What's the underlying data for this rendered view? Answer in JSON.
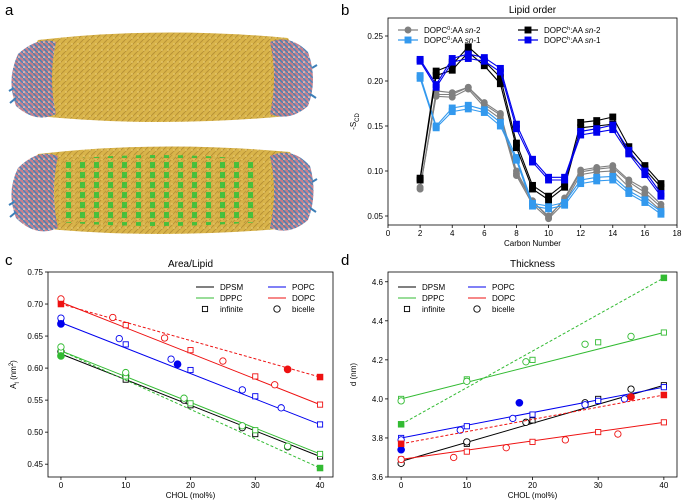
{
  "panels": {
    "a": {
      "letter": "a"
    },
    "b": {
      "letter": "b"
    },
    "c": {
      "letter": "c"
    },
    "d": {
      "letter": "d"
    }
  },
  "colors": {
    "tail_yellow": "#d9b44a",
    "head_blue": "#3d7fb8",
    "head_pink": "#c27b8a",
    "cholesterol_green": "#2fc23a",
    "black": "#000000",
    "gray": "#808080",
    "blue": "#0000ee",
    "lightblue": "#3399ee",
    "green": "#33bb33",
    "red": "#ee1111"
  },
  "chart_data": [
    {
      "panel": "b",
      "type": "line",
      "title": "Lipid order",
      "xlabel": "Carbon Number",
      "ylabel": "-S",
      "ylabel_sub": "CD",
      "xlim": [
        0,
        18
      ],
      "ylim": [
        0.04,
        0.27
      ],
      "xticks": [
        0,
        2,
        4,
        6,
        8,
        10,
        12,
        14,
        16,
        18
      ],
      "yticks": [
        0.05,
        0.1,
        0.15,
        0.2,
        0.25
      ],
      "ytick_labels": [
        "0.05",
        "0.10",
        "0.15",
        "0.20",
        "0.25"
      ],
      "legend": [
        {
          "text": "DOPC",
          "sup": "0",
          "rest": ":AA ",
          "ital": "sn",
          "tail": "-2",
          "color": "#808080",
          "marker": "circle"
        },
        {
          "text": "DOPC",
          "sup": "h",
          "rest": ":AA ",
          "ital": "sn",
          "tail": "-2",
          "color": "#000000",
          "marker": "square"
        },
        {
          "text": "DOPC",
          "sup": "0",
          "rest": ":AA ",
          "ital": "sn",
          "tail": "-1",
          "color": "#3399ee",
          "marker": "square"
        },
        {
          "text": "DOPC",
          "sup": "h",
          "rest": ":AA ",
          "ital": "sn",
          "tail": "-1",
          "color": "#0000ee",
          "marker": "square"
        }
      ],
      "legend_position": "top",
      "series": [
        {
          "group": "gray-sn2",
          "color": "#808080",
          "marker": "circle",
          "x": [
            2,
            3,
            4,
            5,
            6,
            7,
            8,
            9,
            10,
            11,
            12,
            13,
            14,
            15,
            16,
            17
          ],
          "lines": [
            [
              0.082,
              0.183,
              0.182,
              0.191,
              0.171,
              0.158,
              0.095,
              0.063,
              0.047,
              0.065,
              0.096,
              0.099,
              0.1,
              0.082,
              0.072,
              0.056
            ],
            [
              0.08,
              0.185,
              0.185,
              0.193,
              0.174,
              0.162,
              0.097,
              0.066,
              0.05,
              0.068,
              0.099,
              0.102,
              0.104,
              0.088,
              0.076,
              0.06
            ],
            [
              0.08,
              0.189,
              0.187,
              0.193,
              0.176,
              0.164,
              0.1,
              0.067,
              0.048,
              0.07,
              0.101,
              0.104,
              0.106,
              0.09,
              0.08,
              0.063
            ]
          ]
        },
        {
          "group": "lightblue-sn1",
          "color": "#3399ee",
          "marker": "square",
          "x": [
            2,
            3,
            4,
            5,
            6,
            7,
            8,
            9,
            10,
            11,
            12,
            13,
            14,
            15,
            16,
            17
          ],
          "lines": [
            [
              0.203,
              0.148,
              0.166,
              0.169,
              0.165,
              0.15,
              0.112,
              0.061,
              0.058,
              0.062,
              0.086,
              0.089,
              0.09,
              0.075,
              0.065,
              0.052
            ],
            [
              0.206,
              0.15,
              0.17,
              0.173,
              0.168,
              0.154,
              0.115,
              0.064,
              0.061,
              0.065,
              0.09,
              0.093,
              0.094,
              0.078,
              0.068,
              0.055
            ]
          ]
        },
        {
          "group": "black-sn2",
          "color": "#000000",
          "marker": "square",
          "x": [
            2,
            3,
            4,
            5,
            6,
            7,
            8,
            9,
            10,
            11,
            12,
            13,
            14,
            15,
            16,
            17
          ],
          "lines": [
            [
              0.09,
              0.206,
              0.212,
              0.232,
              0.217,
              0.197,
              0.126,
              0.08,
              0.068,
              0.082,
              0.148,
              0.15,
              0.152,
              0.12,
              0.102,
              0.082
            ],
            [
              0.092,
              0.211,
              0.218,
              0.238,
              0.222,
              0.204,
              0.131,
              0.084,
              0.072,
              0.086,
              0.154,
              0.156,
              0.16,
              0.127,
              0.106,
              0.086
            ]
          ]
        },
        {
          "group": "blue-sn1",
          "color": "#0000ee",
          "marker": "square",
          "x": [
            2,
            3,
            4,
            5,
            6,
            7,
            8,
            9,
            10,
            11,
            12,
            13,
            14,
            15,
            16,
            17
          ],
          "lines": [
            [
              0.222,
              0.193,
              0.221,
              0.225,
              0.222,
              0.21,
              0.147,
              0.11,
              0.09,
              0.09,
              0.14,
              0.143,
              0.146,
              0.119,
              0.096,
              0.072
            ],
            [
              0.224,
              0.196,
              0.225,
              0.23,
              0.226,
              0.214,
              0.152,
              0.113,
              0.093,
              0.093,
              0.144,
              0.147,
              0.151,
              0.123,
              0.1,
              0.075
            ]
          ]
        }
      ]
    },
    {
      "panel": "c",
      "type": "line",
      "title": "Area/Lipid",
      "xlabel": "CHOL (mol%)",
      "ylabel": "A",
      "ylabel_sub": "l",
      "ylabel_unit": " (nm",
      "ylabel_sup": "2",
      "ylabel_end": ")",
      "xlim": [
        -2,
        42
      ],
      "ylim": [
        0.43,
        0.75
      ],
      "xticks": [
        0,
        10,
        20,
        30,
        40
      ],
      "yticks": [
        0.45,
        0.5,
        0.55,
        0.6,
        0.65,
        0.7,
        0.75
      ],
      "ytick_labels": [
        "0.45",
        "0.50",
        "0.55",
        "0.60",
        "0.65",
        "0.70",
        "0.75"
      ],
      "legend": [
        {
          "text": "DPSM",
          "color": "#000000",
          "kind": "line"
        },
        {
          "text": "POPC",
          "color": "#0000ee",
          "kind": "line"
        },
        {
          "text": "DPPC",
          "color": "#33bb33",
          "kind": "line"
        },
        {
          "text": "DOPC",
          "color": "#ee1111",
          "kind": "line"
        },
        {
          "text": "infinite",
          "color": "#000000",
          "kind": "square"
        },
        {
          "text": "bicelle",
          "color": "#000000",
          "kind": "circle"
        }
      ],
      "legend_position": "top-right",
      "series": [
        {
          "name": "DPSM",
          "color": "#000000",
          "fit": [
            [
              0,
              0.622
            ],
            [
              40,
              0.462
            ]
          ],
          "infinite": [
            [
              0,
              0.622
            ],
            [
              10,
              0.582
            ],
            [
              20,
              0.542
            ],
            [
              30,
              0.497
            ],
            [
              40,
              0.462
            ]
          ],
          "bicelle": [
            [
              0,
              0.626
            ],
            [
              10,
              0.588
            ],
            [
              19,
              0.55
            ],
            [
              28,
              0.507
            ],
            [
              35,
              0.477
            ]
          ]
        },
        {
          "name": "DPPC",
          "color": "#33bb33",
          "fit": [
            [
              0,
              0.627
            ],
            [
              40,
              0.466
            ]
          ],
          "infinite": [
            [
              0,
              0.627
            ],
            [
              10,
              0.587
            ],
            [
              20,
              0.545
            ],
            [
              30,
              0.503
            ],
            [
              40,
              0.466
            ]
          ],
          "bicelle": [
            [
              0,
              0.633
            ],
            [
              10,
              0.593
            ],
            [
              19,
              0.553
            ],
            [
              28,
              0.51
            ],
            [
              35,
              0.478
            ]
          ],
          "dashed": [
            [
              0,
              0.627
            ],
            [
              40,
              0.444
            ]
          ],
          "filled_square": [
            [
              40,
              0.444
            ]
          ],
          "filled_circle": [
            [
              0,
              0.619
            ]
          ]
        },
        {
          "name": "POPC",
          "color": "#0000ee",
          "fit": [
            [
              0,
              0.671
            ],
            [
              40,
              0.512
            ]
          ],
          "infinite": [
            [
              0,
              0.671
            ],
            [
              10,
              0.637
            ],
            [
              20,
              0.597
            ],
            [
              30,
              0.556
            ],
            [
              40,
              0.512
            ]
          ],
          "bicelle": [
            [
              0,
              0.678
            ],
            [
              9,
              0.646
            ],
            [
              17,
              0.614
            ],
            [
              28,
              0.566
            ],
            [
              34,
              0.538
            ]
          ],
          "filled_circle": [
            [
              18,
              0.606
            ],
            [
              0,
              0.669
            ]
          ]
        },
        {
          "name": "DOPC",
          "color": "#ee1111",
          "fit": [
            [
              0,
              0.703
            ],
            [
              40,
              0.543
            ]
          ],
          "infinite": [
            [
              0,
              0.703
            ],
            [
              10,
              0.667
            ],
            [
              20,
              0.628
            ],
            [
              30,
              0.587
            ],
            [
              40,
              0.543
            ]
          ],
          "bicelle": [
            [
              0,
              0.708
            ],
            [
              8,
              0.679
            ],
            [
              16,
              0.647
            ],
            [
              25,
              0.611
            ],
            [
              33,
              0.574
            ]
          ],
          "dashed": [
            [
              0,
              0.7
            ],
            [
              40,
              0.586
            ]
          ],
          "filled_square": [
            [
              0,
              0.7
            ],
            [
              40,
              0.586
            ]
          ],
          "filled_circle": [
            [
              35,
              0.598
            ]
          ]
        }
      ]
    },
    {
      "panel": "d",
      "type": "line",
      "title": "Thickness",
      "xlabel": "CHOL (mol%)",
      "ylabel": "d (nm)",
      "xlim": [
        -2,
        42
      ],
      "ylim": [
        3.6,
        4.65
      ],
      "xticks": [
        0,
        10,
        20,
        30,
        40
      ],
      "yticks": [
        3.6,
        3.8,
        4.0,
        4.2,
        4.4,
        4.6
      ],
      "ytick_labels": [
        "3.6",
        "3.8",
        "4.0",
        "4.2",
        "4.4",
        "4.6"
      ],
      "legend": [
        {
          "text": "DPSM",
          "color": "#000000",
          "kind": "line"
        },
        {
          "text": "POPC",
          "color": "#0000ee",
          "kind": "line"
        },
        {
          "text": "DPPC",
          "color": "#33bb33",
          "kind": "line"
        },
        {
          "text": "DOPC",
          "color": "#ee1111",
          "kind": "line"
        },
        {
          "text": "infinite",
          "color": "#000000",
          "kind": "square"
        },
        {
          "text": "bicelle",
          "color": "#000000",
          "kind": "circle"
        }
      ],
      "legend_position": "top-left",
      "series": [
        {
          "name": "DPSM",
          "color": "#000000",
          "fit": [
            [
              0,
              3.68
            ],
            [
              40,
              4.07
            ]
          ],
          "infinite": [
            [
              0,
              3.68
            ],
            [
              10,
              3.77
            ],
            [
              20,
              3.89
            ],
            [
              30,
              4.0
            ],
            [
              40,
              4.07
            ]
          ],
          "bicelle": [
            [
              0,
              3.67
            ],
            [
              10,
              3.78
            ],
            [
              19,
              3.88
            ],
            [
              28,
              3.98
            ],
            [
              35,
              4.05
            ]
          ]
        },
        {
          "name": "POPC",
          "color": "#0000ee",
          "fit": [
            [
              0,
              3.8
            ],
            [
              40,
              4.06
            ]
          ],
          "infinite": [
            [
              0,
              3.8
            ],
            [
              10,
              3.86
            ],
            [
              20,
              3.92
            ],
            [
              30,
              3.99
            ],
            [
              40,
              4.06
            ]
          ],
          "bicelle": [
            [
              0,
              3.79
            ],
            [
              9,
              3.84
            ],
            [
              17,
              3.9
            ],
            [
              28,
              3.97
            ],
            [
              34,
              4.0
            ]
          ],
          "filled_circle": [
            [
              18,
              3.98
            ],
            [
              0,
              3.74
            ]
          ]
        },
        {
          "name": "DPPC",
          "color": "#33bb33",
          "fit": [
            [
              0,
              4.0
            ],
            [
              40,
              4.34
            ]
          ],
          "infinite": [
            [
              0,
              4.0
            ],
            [
              10,
              4.1
            ],
            [
              20,
              4.2
            ],
            [
              30,
              4.29
            ],
            [
              40,
              4.34
            ]
          ],
          "bicelle": [
            [
              0,
              3.99
            ],
            [
              10,
              4.09
            ],
            [
              19,
              4.19
            ],
            [
              28,
              4.28
            ],
            [
              35,
              4.32
            ]
          ],
          "dashed": [
            [
              0,
              3.87
            ],
            [
              40,
              4.62
            ]
          ],
          "filled_square": [
            [
              0,
              3.87
            ],
            [
              40,
              4.62
            ]
          ]
        },
        {
          "name": "DOPC",
          "color": "#ee1111",
          "fit": [
            [
              0,
              3.69
            ],
            [
              40,
              3.88
            ]
          ],
          "infinite": [
            [
              0,
              3.69
            ],
            [
              10,
              3.73
            ],
            [
              20,
              3.78
            ],
            [
              30,
              3.83
            ],
            [
              40,
              3.88
            ]
          ],
          "bicelle": [
            [
              0,
              3.69
            ],
            [
              8,
              3.7
            ],
            [
              16,
              3.75
            ],
            [
              25,
              3.79
            ],
            [
              33,
              3.82
            ]
          ],
          "dashed": [
            [
              0,
              3.77
            ],
            [
              40,
              4.02
            ]
          ],
          "filled_square": [
            [
              0,
              3.77
            ],
            [
              40,
              4.02
            ]
          ],
          "filled_circle": [
            [
              35,
              4.01
            ]
          ]
        }
      ]
    }
  ]
}
